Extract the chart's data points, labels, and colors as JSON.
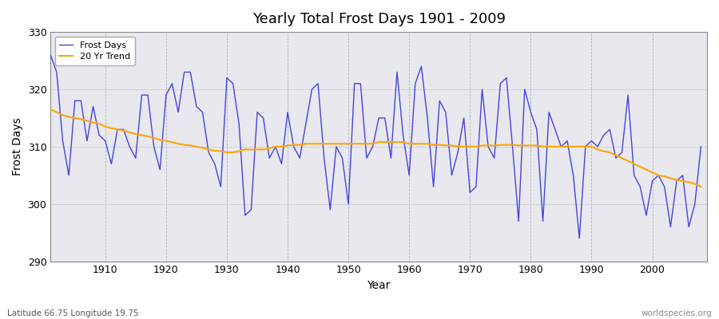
{
  "title": "Yearly Total Frost Days 1901 - 2009",
  "xlabel": "Year",
  "ylabel": "Frost Days",
  "subtitle_left": "Latitude 66.75 Longitude 19.75",
  "subtitle_right": "worldspecies.org",
  "ylim": [
    290,
    330
  ],
  "xlim": [
    1901,
    2009
  ],
  "yticks": [
    290,
    300,
    310,
    320,
    330
  ],
  "xticks": [
    1910,
    1920,
    1930,
    1940,
    1950,
    1960,
    1970,
    1980,
    1990,
    2000
  ],
  "line_color": "#4444dd",
  "trend_color": "#FFA500",
  "bg_color": "#ffffff",
  "plot_bg_color": "#e8e8ee",
  "frost_days": {
    "1901": 326,
    "1902": 323,
    "1903": 311,
    "1904": 305,
    "1905": 318,
    "1906": 318,
    "1907": 311,
    "1908": 317,
    "1909": 312,
    "1910": 311,
    "1911": 307,
    "1912": 313,
    "1913": 313,
    "1914": 310,
    "1915": 308,
    "1916": 319,
    "1917": 319,
    "1918": 310,
    "1919": 306,
    "1920": 319,
    "1921": 321,
    "1922": 316,
    "1923": 323,
    "1924": 323,
    "1925": 317,
    "1926": 316,
    "1927": 309,
    "1928": 307,
    "1929": 303,
    "1930": 322,
    "1931": 321,
    "1932": 314,
    "1933": 298,
    "1934": 299,
    "1935": 316,
    "1936": 315,
    "1937": 308,
    "1938": 310,
    "1939": 307,
    "1940": 316,
    "1941": 310,
    "1942": 308,
    "1943": 314,
    "1944": 320,
    "1945": 321,
    "1946": 308,
    "1947": 299,
    "1948": 310,
    "1949": 308,
    "1950": 300,
    "1951": 321,
    "1952": 321,
    "1953": 308,
    "1954": 310,
    "1955": 315,
    "1956": 315,
    "1957": 308,
    "1958": 323,
    "1959": 312,
    "1960": 305,
    "1961": 321,
    "1962": 324,
    "1963": 315,
    "1964": 303,
    "1965": 318,
    "1966": 316,
    "1967": 305,
    "1968": 309,
    "1969": 315,
    "1970": 302,
    "1971": 303,
    "1972": 320,
    "1973": 310,
    "1974": 308,
    "1975": 321,
    "1976": 322,
    "1977": 310,
    "1978": 297,
    "1979": 320,
    "1980": 316,
    "1981": 313,
    "1982": 297,
    "1983": 316,
    "1984": 313,
    "1985": 310,
    "1986": 311,
    "1987": 305,
    "1988": 294,
    "1989": 310,
    "1990": 311,
    "1991": 310,
    "1992": 312,
    "1993": 313,
    "1994": 308,
    "1995": 309,
    "1996": 319,
    "1997": 305,
    "1998": 303,
    "1999": 298,
    "2000": 304,
    "2001": 305,
    "2002": 303,
    "2003": 296,
    "2004": 304,
    "2005": 305,
    "2006": 296,
    "2007": 300,
    "2008": 310
  },
  "trend_values": {
    "1901": 316.5,
    "1902": 316.0,
    "1903": 315.5,
    "1904": 315.2,
    "1905": 315.0,
    "1906": 314.8,
    "1907": 314.5,
    "1908": 314.2,
    "1909": 314.0,
    "1910": 313.5,
    "1911": 313.2,
    "1912": 313.0,
    "1913": 312.8,
    "1914": 312.5,
    "1915": 312.2,
    "1916": 312.0,
    "1917": 311.8,
    "1918": 311.5,
    "1919": 311.2,
    "1920": 311.0,
    "1921": 310.8,
    "1922": 310.5,
    "1923": 310.3,
    "1924": 310.2,
    "1925": 310.0,
    "1926": 309.8,
    "1927": 309.5,
    "1928": 309.3,
    "1929": 309.2,
    "1930": 309.0,
    "1931": 309.0,
    "1932": 309.2,
    "1933": 309.5,
    "1934": 309.5,
    "1935": 309.5,
    "1936": 309.5,
    "1937": 309.7,
    "1938": 310.0,
    "1939": 310.0,
    "1940": 310.2,
    "1941": 310.3,
    "1942": 310.3,
    "1943": 310.5,
    "1944": 310.5,
    "1945": 310.5,
    "1946": 310.5,
    "1947": 310.5,
    "1948": 310.5,
    "1949": 310.5,
    "1950": 310.5,
    "1951": 310.5,
    "1952": 310.5,
    "1953": 310.5,
    "1954": 310.5,
    "1955": 310.8,
    "1956": 310.8,
    "1957": 310.8,
    "1958": 310.8,
    "1959": 310.8,
    "1960": 310.5,
    "1961": 310.5,
    "1962": 310.5,
    "1963": 310.5,
    "1964": 310.3,
    "1965": 310.3,
    "1966": 310.2,
    "1967": 310.2,
    "1968": 310.0,
    "1969": 310.0,
    "1970": 310.0,
    "1971": 310.0,
    "1972": 310.2,
    "1973": 310.2,
    "1974": 310.2,
    "1975": 310.3,
    "1976": 310.3,
    "1977": 310.3,
    "1978": 310.2,
    "1979": 310.2,
    "1980": 310.2,
    "1981": 310.2,
    "1982": 310.0,
    "1983": 310.0,
    "1984": 310.0,
    "1985": 310.0,
    "1986": 310.0,
    "1987": 310.0,
    "1988": 310.0,
    "1989": 310.0,
    "1990": 310.0,
    "1991": 309.5,
    "1992": 309.2,
    "1993": 309.0,
    "1994": 308.5,
    "1995": 308.0,
    "1996": 307.5,
    "1997": 307.0,
    "1998": 306.5,
    "1999": 306.0,
    "2000": 305.5,
    "2001": 305.0,
    "2002": 304.8,
    "2003": 304.5,
    "2004": 304.2,
    "2005": 304.0,
    "2006": 303.8,
    "2007": 303.5,
    "2008": 303.0
  }
}
